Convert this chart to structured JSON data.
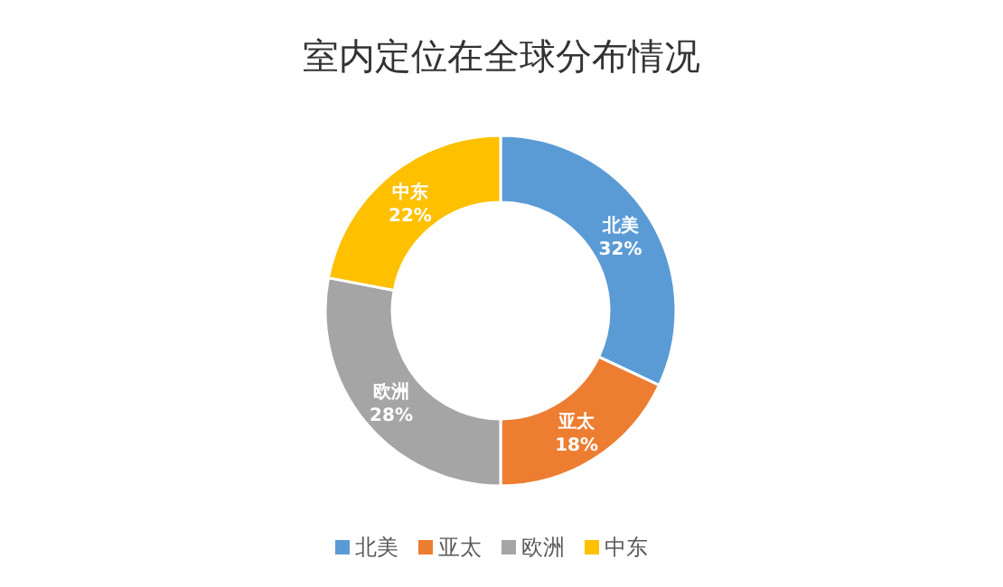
{
  "chart_data": {
    "type": "donut",
    "title": "室内定位在全球分布情况",
    "categories": [
      "北美",
      "亚太",
      "欧洲",
      "中东"
    ],
    "values": [
      32,
      18,
      28,
      22
    ],
    "colors": [
      "#5b9bd5",
      "#ed7d31",
      "#a5a5a5",
      "#ffc000"
    ],
    "value_labels": [
      "32%",
      "18%",
      "28%",
      "22%"
    ],
    "legend": "bottom"
  }
}
